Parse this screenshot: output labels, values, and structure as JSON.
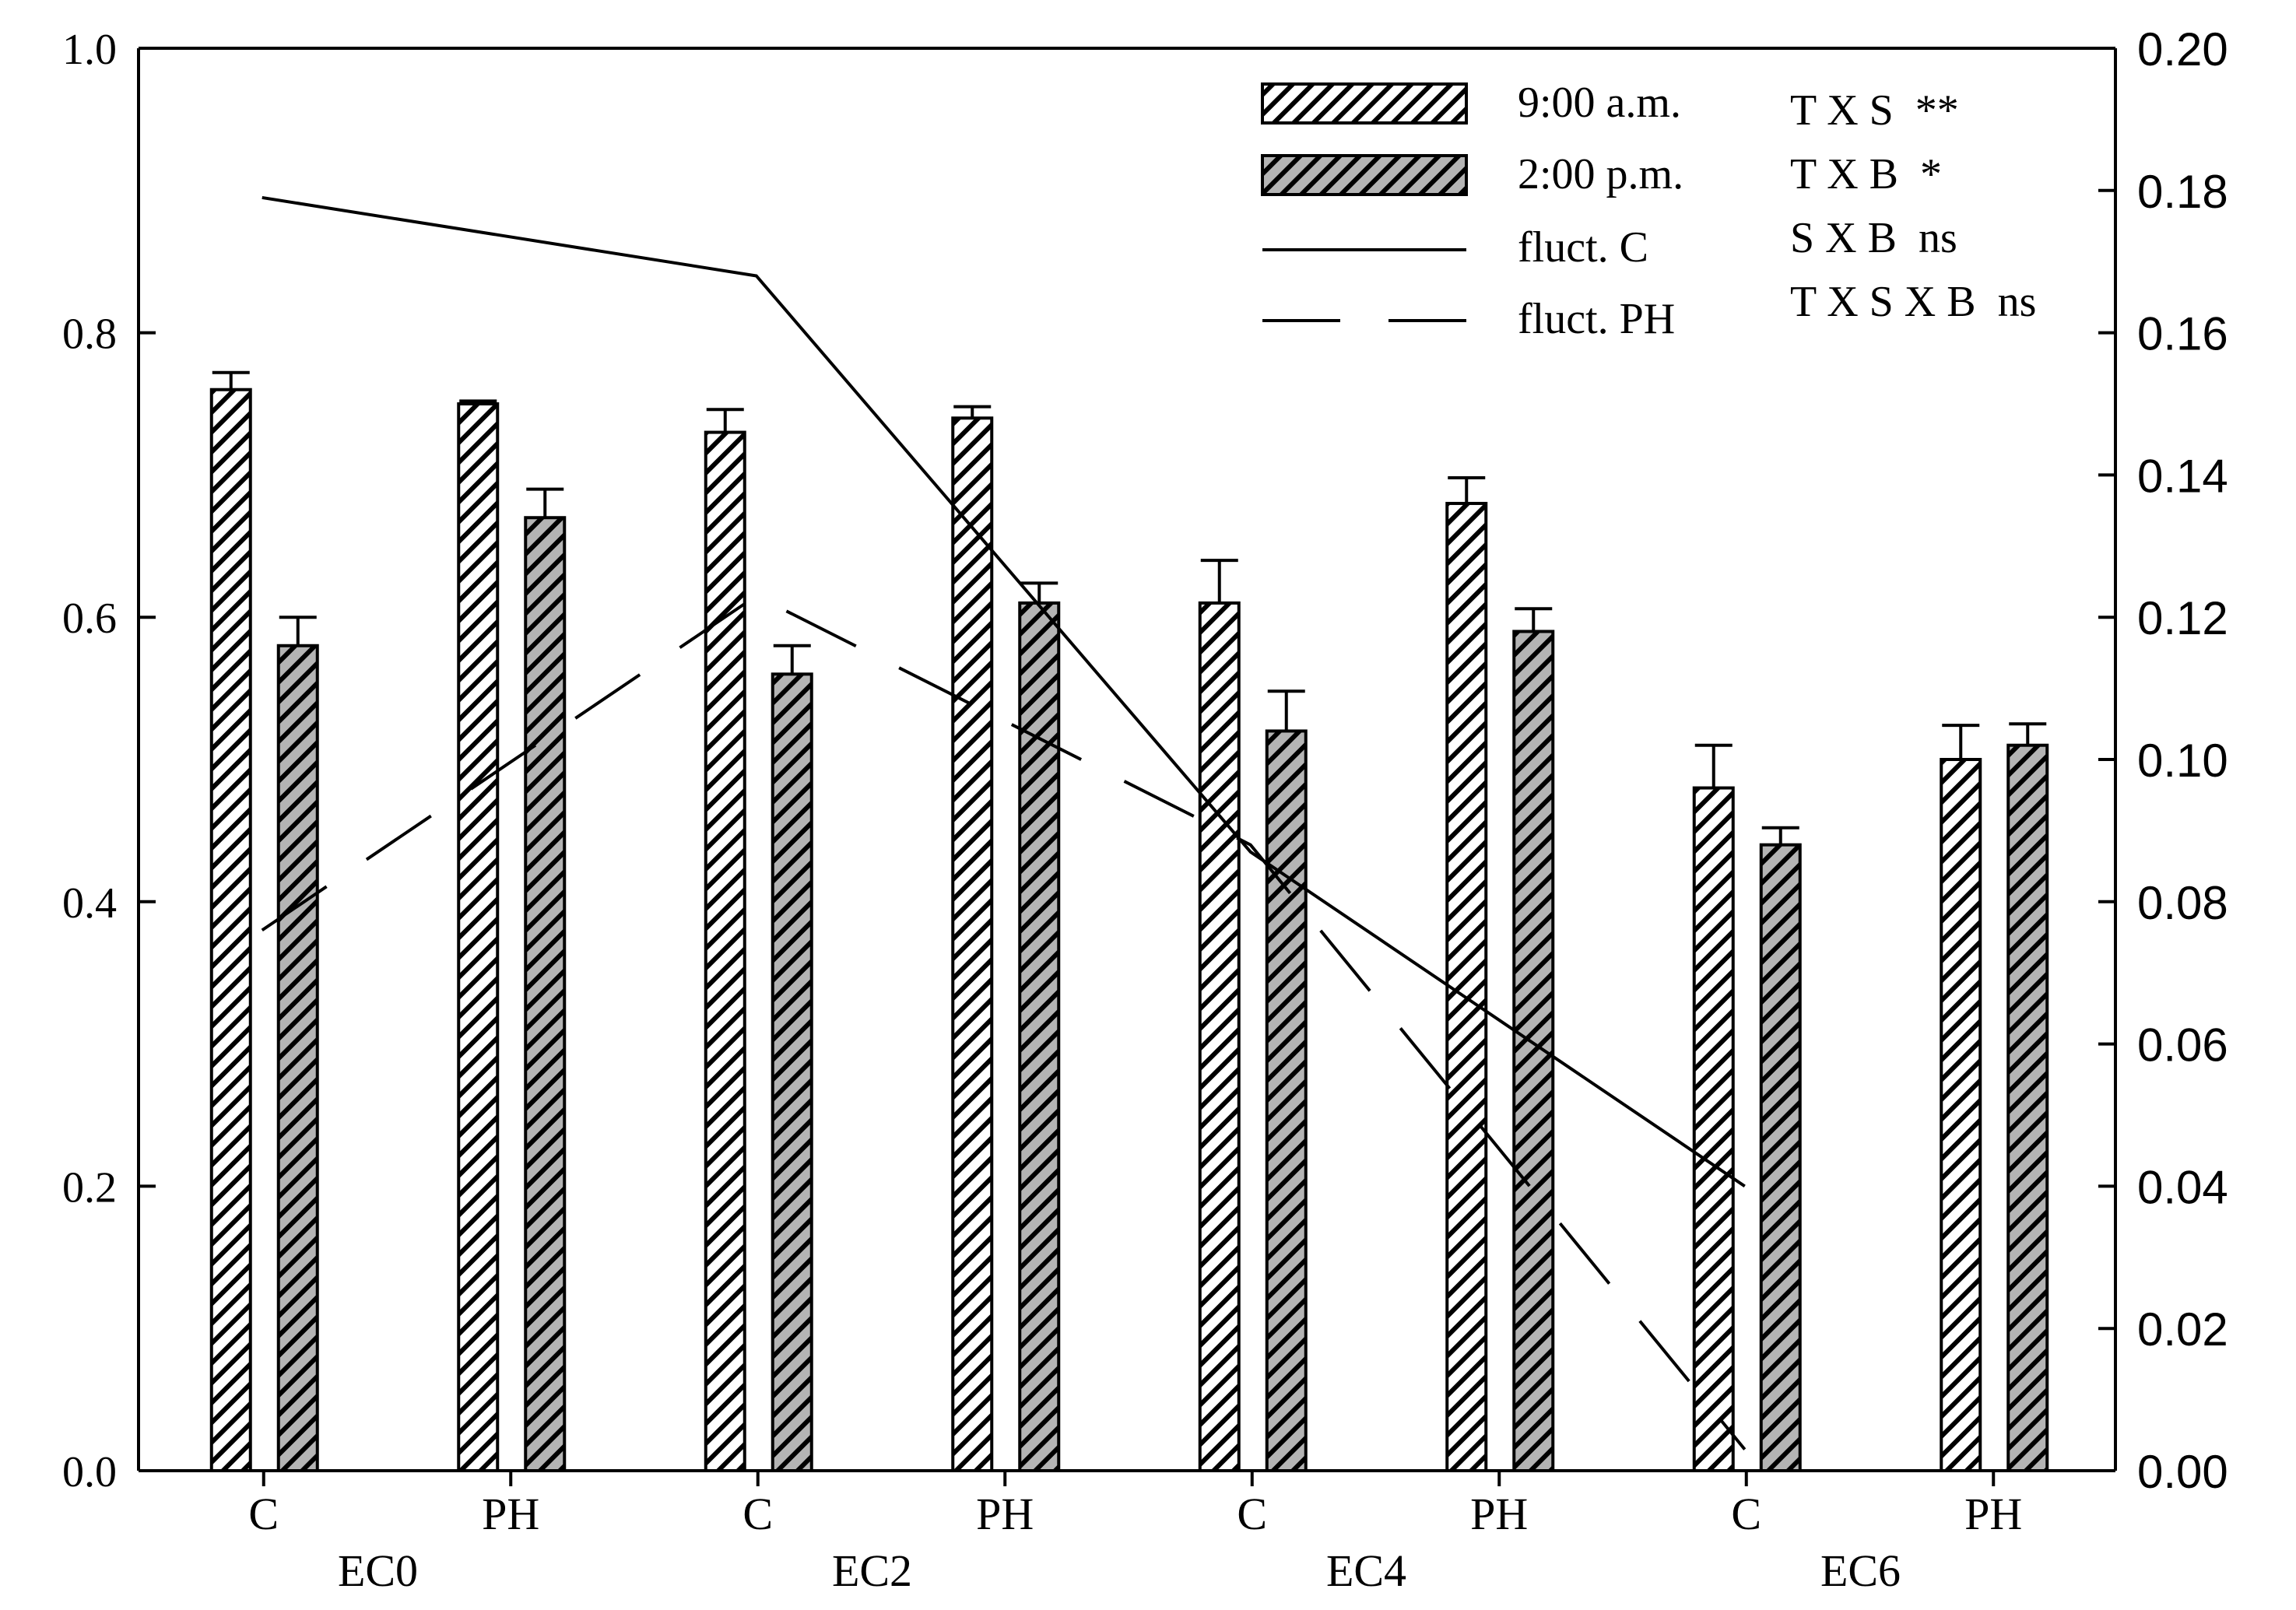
{
  "chart_data": {
    "type": "bar",
    "colors": {
      "am_bg": "#ffffff",
      "pm_bg": "#b4b4b4",
      "ink": "#000000"
    },
    "left_axis": {
      "ylim": [
        0,
        1.0
      ],
      "ticks": [
        "0.0",
        "0.2",
        "0.4",
        "0.6",
        "0.8",
        "1.0"
      ]
    },
    "right_axis": {
      "ylim": [
        0,
        0.2
      ],
      "ticks": [
        "0.00",
        "0.02",
        "0.04",
        "0.06",
        "0.08",
        "0.10",
        "0.12",
        "0.14",
        "0.16",
        "0.18",
        "0.20"
      ]
    },
    "categories": [
      "C",
      "PH",
      "C",
      "PH",
      "C",
      "PH",
      "C",
      "PH"
    ],
    "groups": [
      "EC0",
      "EC2",
      "EC4",
      "EC6"
    ],
    "series": [
      {
        "name": "9:00 a.m.",
        "pattern": "hatch-white",
        "values": [
          0.76,
          0.75,
          0.73,
          0.74,
          0.61,
          0.68,
          0.48,
          0.5
        ],
        "errors": [
          0.012,
          0.002,
          0.016,
          0.008,
          0.03,
          0.018,
          0.03,
          0.024
        ]
      },
      {
        "name": "2:00 p.m.",
        "pattern": "hatch-gray",
        "values": [
          0.58,
          0.67,
          0.56,
          0.61,
          0.52,
          0.59,
          0.44,
          0.51
        ],
        "errors": [
          0.02,
          0.02,
          0.02,
          0.014,
          0.028,
          0.016,
          0.012,
          0.015
        ]
      }
    ],
    "lines": [
      {
        "name": "fluct. C",
        "style": "solid",
        "axis": "right",
        "points": [
          {
            "group": "EC0",
            "value": 0.179
          },
          {
            "group": "EC2",
            "value": 0.168
          },
          {
            "group": "EC4",
            "value": 0.087
          },
          {
            "group": "EC6",
            "value": 0.04
          }
        ]
      },
      {
        "name": "fluct. PH",
        "style": "dashed",
        "axis": "right",
        "points": [
          {
            "group": "EC0",
            "value": 0.076
          },
          {
            "group": "EC2",
            "value": 0.123
          },
          {
            "group": "EC4",
            "value": 0.088
          },
          {
            "group": "EC6",
            "value": 0.003
          }
        ]
      }
    ],
    "legend": [
      "9:00 a.m.",
      "2:00 p.m.",
      "fluct. C",
      "fluct. PH"
    ],
    "stats": [
      "T X S  **",
      "T X B  *",
      "S X B  ns",
      "T X S X B  ns"
    ]
  }
}
